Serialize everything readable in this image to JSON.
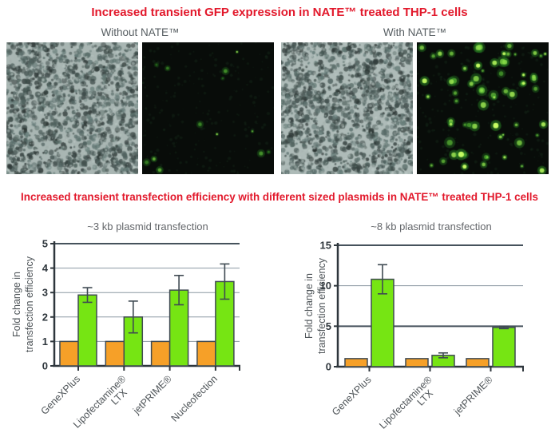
{
  "colors": {
    "title_red": "#e2182b",
    "label_gray": "#575e62",
    "chart_title_gray": "#63666a",
    "axis_dark": "#2e363c",
    "grid_gray": "#8b98a2",
    "grid_strong": "#46525c",
    "error_dark": "#3f4a52",
    "bar_orange": "#f6a028",
    "bar_green": "#76e513",
    "gfp_green": "#46d42c",
    "brightfield_bg": "#a9b6b3",
    "fluorescence_bg": "#080c09"
  },
  "titles": {
    "top": "Increased transient GFP expression in NATE™ treated THP-1 cells",
    "bottom": "Increased transient transfection efficiency with different sized plasmids in NATE™ treated THP-1 cells"
  },
  "micrographs": {
    "left_label": "Without NATE™",
    "right_label": "With NATE™",
    "panels": [
      {
        "name": "brightfield-without-nate",
        "type": "brightfield"
      },
      {
        "name": "gfp-without-nate",
        "type": "fluorescence",
        "approx_gfp_cells": 13
      },
      {
        "name": "brightfield-with-nate",
        "type": "brightfield"
      },
      {
        "name": "gfp-with-nate",
        "type": "fluorescence",
        "approx_gfp_cells": 66
      }
    ]
  },
  "chart_data": [
    {
      "type": "bar",
      "title": "~3 kb plasmid transfection",
      "ylabel": [
        "Fold change in",
        "transfection efficiency"
      ],
      "categories": [
        [
          "GeneXPlus"
        ],
        [
          "Lipofectamine®",
          "LTX"
        ],
        [
          "jetPRIME®"
        ],
        [
          "Nucleofection"
        ]
      ],
      "series": [
        {
          "color": "#f6a028",
          "values": [
            1,
            1,
            1,
            1
          ],
          "errors": [
            0,
            0,
            0,
            0
          ]
        },
        {
          "color": "#76e513",
          "values": [
            2.9,
            2.0,
            3.1,
            3.45
          ],
          "errors": [
            0.3,
            0.65,
            0.6,
            0.72
          ]
        }
      ],
      "ylim": [
        0,
        5
      ],
      "yticks": [
        0,
        1,
        2,
        3,
        4,
        5
      ],
      "strong_gridlines": [
        5
      ],
      "grid": true,
      "legend": false
    },
    {
      "type": "bar",
      "title": "~8 kb plasmid transfection",
      "ylabel": [
        "Fold change in",
        "transfection efficiency"
      ],
      "categories": [
        [
          "GeneXPlus"
        ],
        [
          "Lipofectamine®",
          "LTX"
        ],
        [
          "jetPRIME®"
        ]
      ],
      "series": [
        {
          "color": "#f6a028",
          "values": [
            1,
            1,
            1
          ],
          "errors": [
            0,
            0,
            0
          ]
        },
        {
          "color": "#76e513",
          "values": [
            10.8,
            1.4,
            4.85
          ],
          "errors": [
            1.8,
            0.3,
            0.15
          ]
        }
      ],
      "ylim": [
        0,
        15
      ],
      "yticks": [
        0,
        5,
        10,
        15
      ],
      "strong_gridlines": [
        5,
        15
      ],
      "grid": true,
      "legend": false
    }
  ]
}
